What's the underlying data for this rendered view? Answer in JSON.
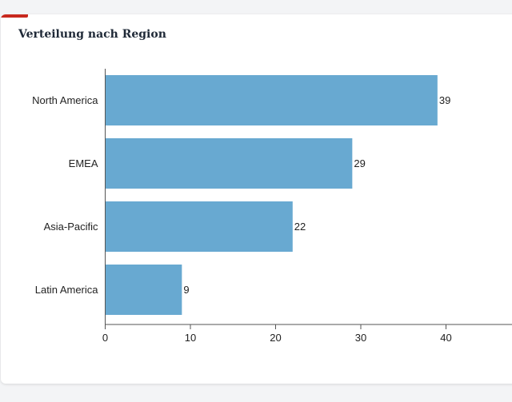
{
  "page": {
    "title": "Verteilung nach Region"
  },
  "colors": {
    "bar": "#68a9d1",
    "axis": "#555555",
    "accent": "#c8281e",
    "background": "#f3f4f6",
    "card": "#ffffff"
  },
  "chart_data": {
    "type": "bar",
    "orientation": "horizontal",
    "title": "Verteilung nach Region",
    "categories": [
      "North America",
      "EMEA",
      "Asia-Pacific",
      "Latin America"
    ],
    "values": [
      39,
      29,
      22,
      9
    ],
    "data_labels": [
      "39",
      "29",
      "22",
      "9"
    ],
    "xlim": [
      0,
      49
    ],
    "xticks": [
      0,
      10,
      20,
      30,
      40
    ],
    "xtick_labels": [
      "0",
      "10",
      "20",
      "30",
      "40"
    ],
    "xlabel": "",
    "ylabel": "",
    "grid": false,
    "legend": "none"
  }
}
